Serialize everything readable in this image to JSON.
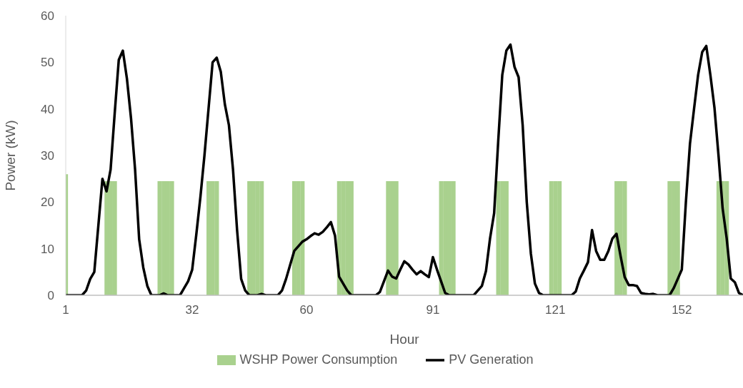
{
  "chart_data": {
    "type": "bar",
    "xlabel": "Hour",
    "ylabel": "Power (kW)",
    "xlim": [
      1,
      167
    ],
    "xticks": [
      1,
      32,
      60,
      91,
      121,
      152
    ],
    "ylim": [
      0,
      60
    ],
    "yticks": [
      0,
      10,
      20,
      30,
      40,
      50,
      60
    ],
    "legend": "bottom",
    "marker": "none",
    "line_style": "solid",
    "series": [
      {
        "name": "WSHP Power Consumption",
        "color": "#a9d18e",
        "x": [
          1,
          11,
          12,
          13,
          24,
          25,
          26,
          27,
          36,
          37,
          38,
          46,
          47,
          48,
          49,
          57,
          58,
          59,
          68,
          69,
          70,
          71,
          80,
          81,
          82,
          93,
          94,
          95,
          96,
          107,
          108,
          109,
          120,
          121,
          122,
          136,
          137,
          138,
          149,
          150,
          151,
          161,
          162,
          163
        ],
        "values": [
          26,
          24.5,
          24.5,
          24.5,
          24.5,
          24.5,
          24.5,
          24.5,
          24.5,
          24.5,
          24.5,
          24.5,
          24.5,
          24.5,
          24.5,
          24.5,
          24.5,
          24.5,
          24.5,
          24.5,
          24.5,
          24.5,
          24.5,
          24.5,
          24.5,
          24.5,
          24.5,
          24.5,
          24.5,
          24.5,
          24.5,
          24.5,
          24.5,
          24.5,
          24.5,
          24.5,
          24.5,
          24.5,
          24.5,
          24.5,
          24.5,
          24.5,
          24.5,
          24.5
        ]
      },
      {
        "name": "PV Generation",
        "type": "line",
        "color": "#000000",
        "x": [
          1,
          5,
          6,
          7,
          8,
          9,
          10,
          11,
          12,
          13,
          14,
          15,
          16,
          17,
          18,
          19,
          20,
          21,
          22,
          24,
          25,
          26,
          29,
          30,
          31,
          32,
          33,
          34,
          35,
          36,
          37,
          38,
          39,
          40,
          41,
          42,
          43,
          44,
          45,
          46,
          48,
          49,
          50,
          53,
          54,
          55,
          56,
          57,
          58,
          59,
          60,
          61,
          62,
          63,
          64,
          65,
          66,
          67,
          68,
          69,
          70,
          71,
          77,
          78,
          79,
          80,
          81,
          82,
          83,
          84,
          85,
          86,
          87,
          88,
          89,
          90,
          91,
          92,
          93,
          94,
          95,
          101,
          102,
          103,
          104,
          105,
          106,
          107,
          108,
          109,
          110,
          111,
          112,
          113,
          114,
          115,
          116,
          117,
          118,
          125,
          126,
          127,
          128,
          129,
          130,
          131,
          132,
          133,
          134,
          135,
          136,
          137,
          138,
          139,
          140,
          141,
          142,
          143,
          144,
          145,
          146,
          149,
          150,
          151,
          152,
          153,
          154,
          155,
          156,
          157,
          158,
          159,
          160,
          161,
          162,
          163,
          164,
          165,
          166,
          167
        ],
        "values": [
          0,
          0,
          1,
          3.5,
          5,
          15,
          25,
          22.3,
          27,
          39,
          50.5,
          52.5,
          46.5,
          38,
          27,
          12,
          6,
          2,
          0,
          0,
          0.4,
          0,
          0,
          1.5,
          3,
          5.5,
          13,
          21,
          30,
          40,
          50,
          51,
          48,
          41,
          36.5,
          27,
          14,
          3.5,
          1,
          0,
          0,
          0.3,
          0,
          0,
          1,
          3.5,
          6.5,
          9.5,
          10.5,
          11.5,
          12,
          12.7,
          13.3,
          13,
          13.6,
          14.6,
          15.7,
          12.8,
          4,
          2.5,
          1,
          0,
          0,
          0.7,
          3,
          5.3,
          4,
          3.6,
          5.5,
          7.3,
          6.6,
          5.5,
          4.5,
          5.2,
          4.5,
          3.9,
          8.2,
          5.5,
          3,
          0.5,
          0,
          0,
          1,
          2,
          5.2,
          12.2,
          17.6,
          33,
          47.3,
          52.5,
          53.8,
          49,
          46.8,
          36.5,
          20,
          9,
          2.5,
          0.5,
          0,
          0,
          0.8,
          3.6,
          5.3,
          7.1,
          14,
          9.5,
          7.6,
          7.6,
          9.5,
          12.2,
          13.2,
          8.4,
          3.9,
          2.2,
          2.2,
          2,
          0.5,
          0.3,
          0.2,
          0.3,
          0,
          0,
          1.5,
          3.5,
          5.5,
          20,
          32.5,
          40,
          47.3,
          52.2,
          53.5,
          47.3,
          40.3,
          30,
          18.7,
          12.2,
          3.6,
          2.8,
          0.5,
          0
        ]
      }
    ]
  }
}
